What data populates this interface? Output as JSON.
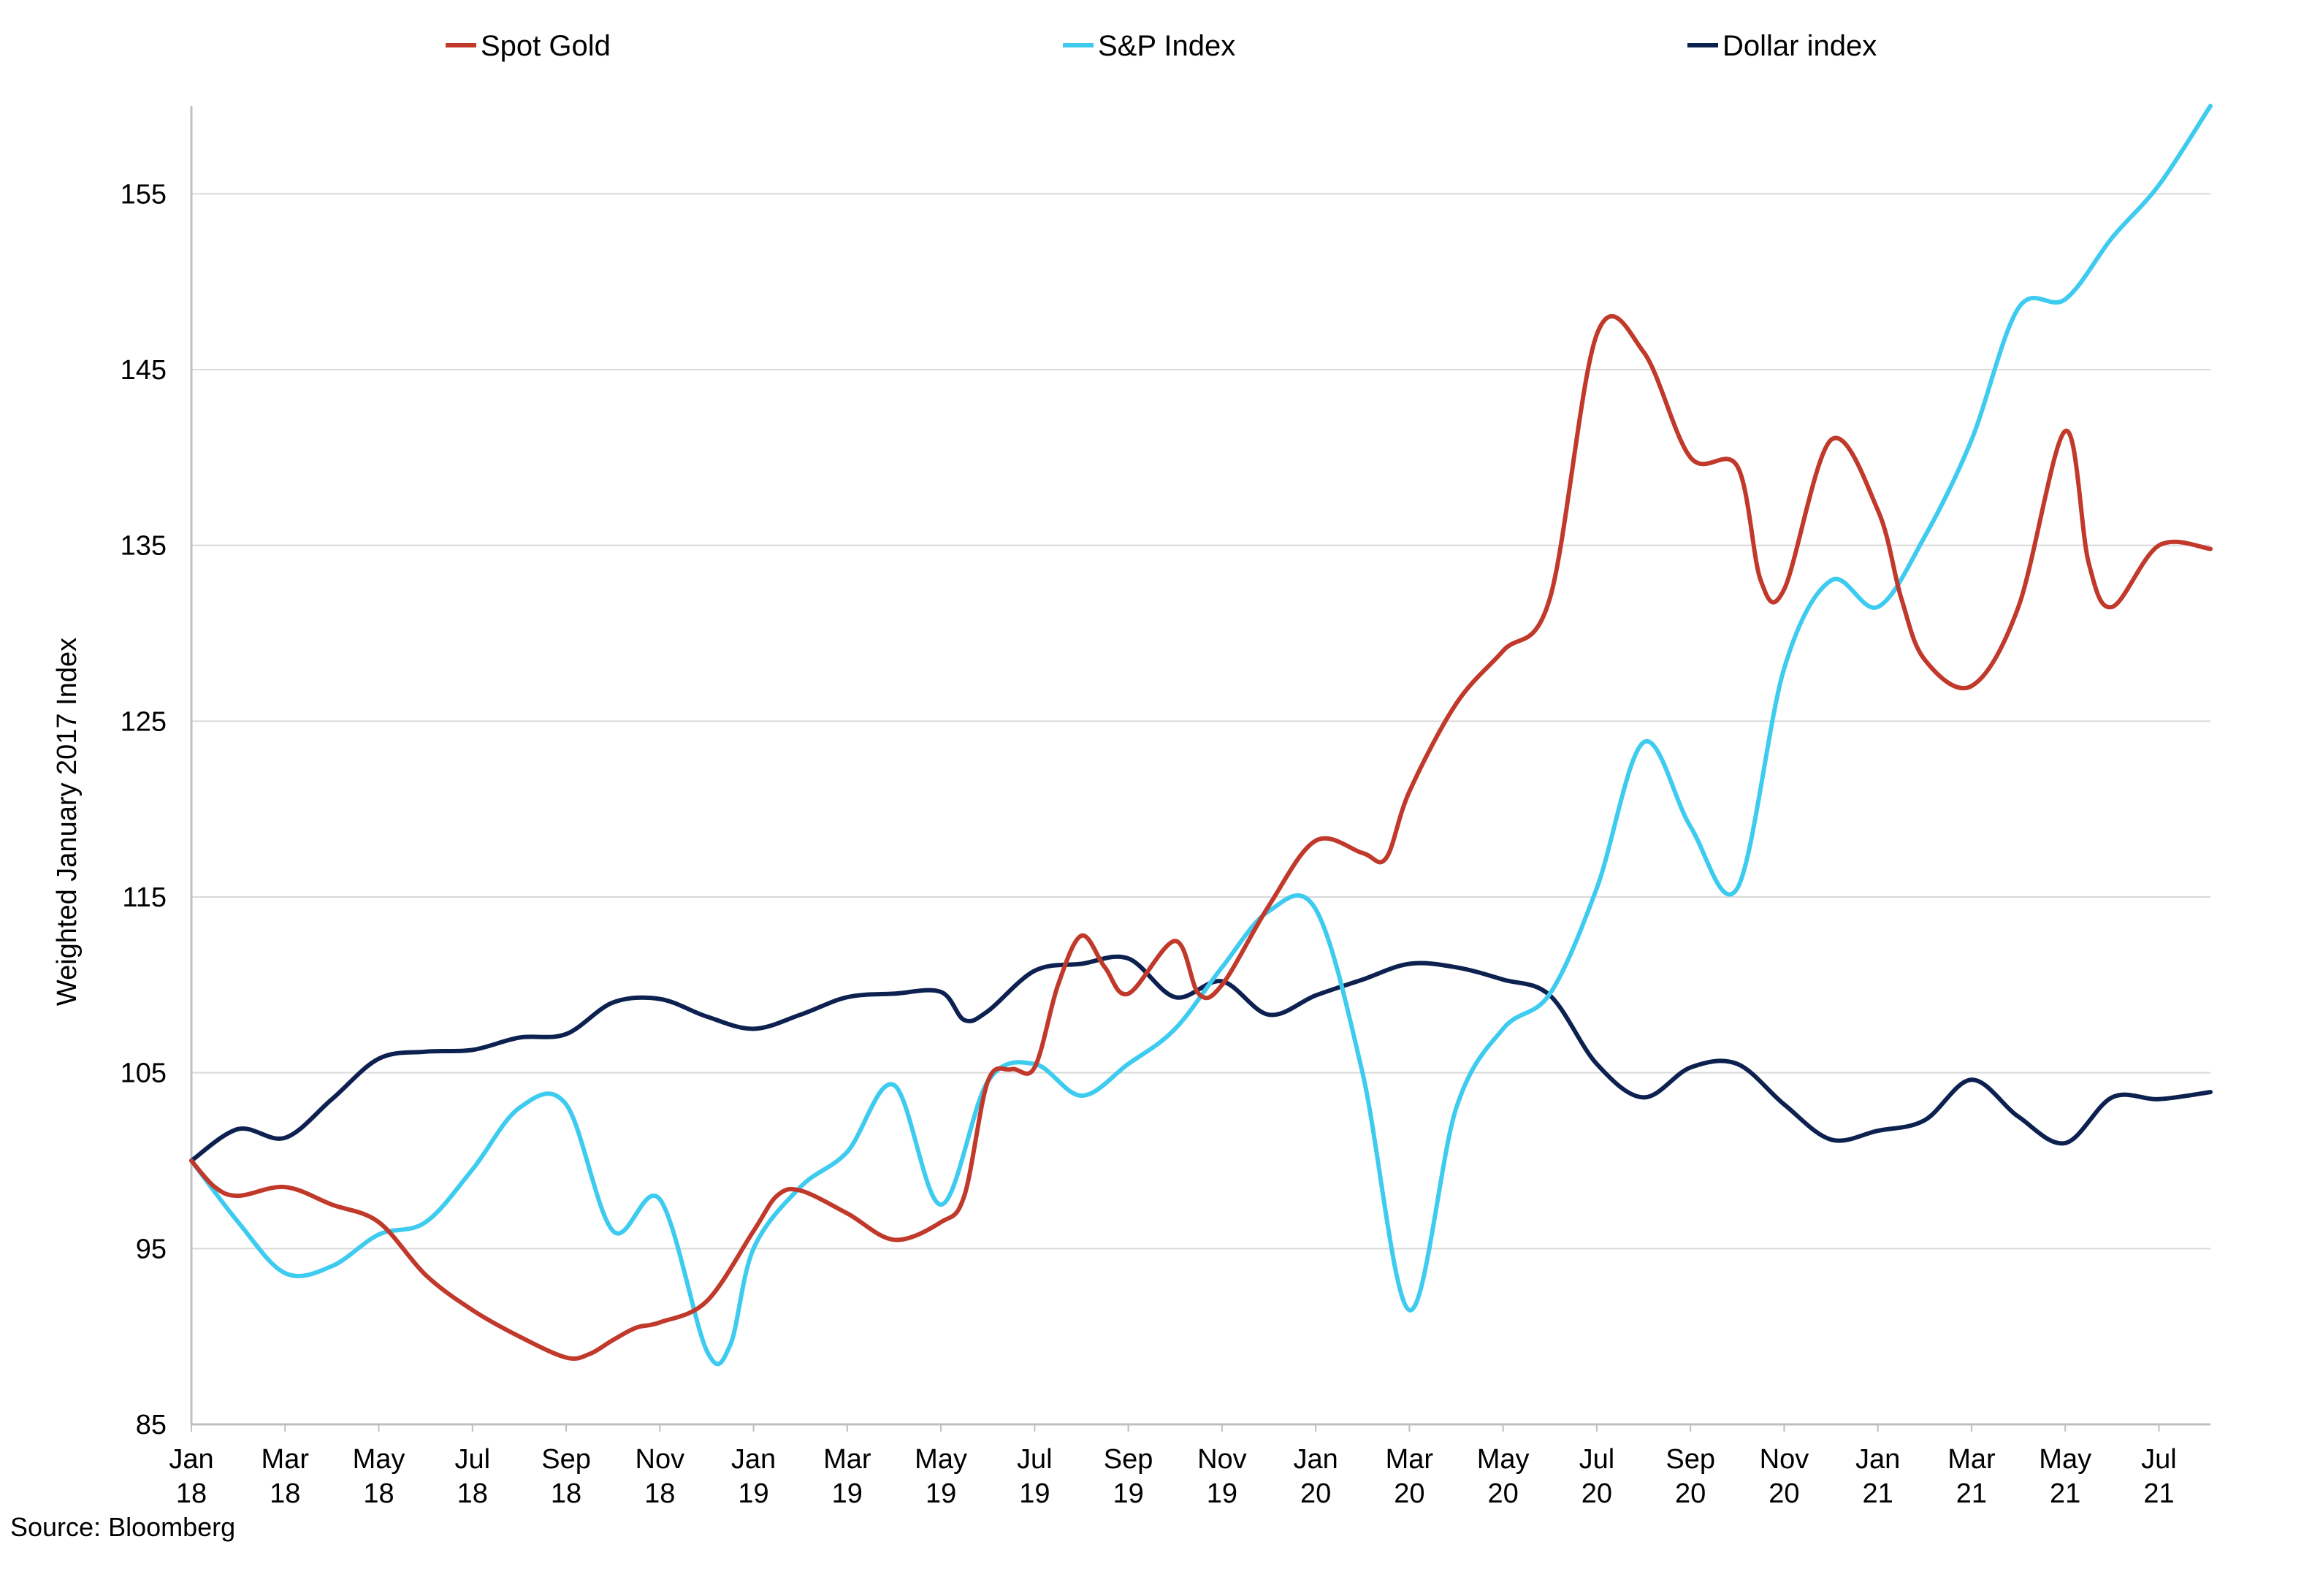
{
  "source": "Source: Bloomberg",
  "chart_data": {
    "type": "line",
    "ylabel": "Weighted January 2017 Index",
    "xlabel": "",
    "ylim": [
      85,
      160
    ],
    "yticks": [
      85,
      95,
      105,
      115,
      125,
      135,
      145,
      155
    ],
    "grid": "horizontal",
    "legend_position": "top",
    "x_tick_labels": [
      [
        "Jan",
        "18"
      ],
      [
        "Mar",
        "18"
      ],
      [
        "May",
        "18"
      ],
      [
        "Jul",
        "18"
      ],
      [
        "Sep",
        "18"
      ],
      [
        "Nov",
        "18"
      ],
      [
        "Jan",
        "19"
      ],
      [
        "Mar",
        "19"
      ],
      [
        "May",
        "19"
      ],
      [
        "Jul",
        "19"
      ],
      [
        "Sep",
        "19"
      ],
      [
        "Nov",
        "19"
      ],
      [
        "Jan",
        "20"
      ],
      [
        "Mar",
        "20"
      ],
      [
        "May",
        "20"
      ],
      [
        "Jul",
        "20"
      ],
      [
        "Sep",
        "20"
      ],
      [
        "Nov",
        "20"
      ],
      [
        "Jan",
        "21"
      ],
      [
        "Mar",
        "21"
      ],
      [
        "May",
        "21"
      ],
      [
        "Jul",
        "21"
      ]
    ],
    "x_tick_months": [
      0,
      2,
      4,
      6,
      8,
      10,
      12,
      14,
      16,
      18,
      20,
      22,
      24,
      26,
      28,
      30,
      32,
      34,
      36,
      38,
      40,
      42
    ],
    "xlim_months": [
      0,
      43.1
    ],
    "x_unit": "months since Jan 18",
    "series": [
      {
        "name": "Spot Gold",
        "color": "#C0392B",
        "points": [
          [
            0,
            100
          ],
          [
            0.5,
            98.5
          ],
          [
            1,
            98
          ],
          [
            2,
            98.5
          ],
          [
            3,
            97.5
          ],
          [
            4,
            96.5
          ],
          [
            5,
            93.5
          ],
          [
            6,
            91.5
          ],
          [
            7,
            90
          ],
          [
            8,
            88.8
          ],
          [
            8.5,
            89
          ],
          [
            9,
            89.8
          ],
          [
            9.5,
            90.5
          ],
          [
            10,
            90.8
          ],
          [
            11,
            92
          ],
          [
            12,
            96
          ],
          [
            12.5,
            98
          ],
          [
            13,
            98.3
          ],
          [
            14,
            97
          ],
          [
            15,
            95.5
          ],
          [
            16,
            96.5
          ],
          [
            16.5,
            98
          ],
          [
            17,
            104.5
          ],
          [
            17.5,
            105.2
          ],
          [
            18,
            105.3
          ],
          [
            18.5,
            110
          ],
          [
            19,
            112.8
          ],
          [
            19.5,
            111
          ],
          [
            20,
            109.5
          ],
          [
            21,
            112.5
          ],
          [
            21.5,
            109.5
          ],
          [
            22,
            110
          ],
          [
            23,
            114.5
          ],
          [
            24,
            118.2
          ],
          [
            25,
            117.5
          ],
          [
            25.5,
            117.2
          ],
          [
            26,
            121
          ],
          [
            27,
            126
          ],
          [
            28,
            129
          ],
          [
            29,
            132
          ],
          [
            30,
            147
          ],
          [
            31,
            146
          ],
          [
            32,
            140
          ],
          [
            33,
            139.5
          ],
          [
            33.5,
            133
          ],
          [
            34,
            132.5
          ],
          [
            35,
            141
          ],
          [
            36,
            137
          ],
          [
            36.5,
            132
          ],
          [
            37,
            128.5
          ],
          [
            38,
            127
          ],
          [
            39,
            131.5
          ],
          [
            40,
            141.5
          ],
          [
            40.5,
            134
          ],
          [
            41,
            131.5
          ],
          [
            42,
            135
          ],
          [
            43.1,
            134.8
          ]
        ]
      },
      {
        "name": "S&P Index",
        "color": "#3DCBF0",
        "points": [
          [
            0,
            100
          ],
          [
            1,
            96.5
          ],
          [
            2,
            93.6
          ],
          [
            3,
            94
          ],
          [
            4,
            95.8
          ],
          [
            5,
            96.5
          ],
          [
            6,
            99.5
          ],
          [
            7,
            103
          ],
          [
            8,
            103.2
          ],
          [
            9,
            96
          ],
          [
            10,
            97.8
          ],
          [
            11,
            89.2
          ],
          [
            11.5,
            89.5
          ],
          [
            12,
            95
          ],
          [
            13,
            98.5
          ],
          [
            14,
            100.5
          ],
          [
            15,
            104.3
          ],
          [
            16,
            97.5
          ],
          [
            17,
            104.5
          ],
          [
            18,
            105.5
          ],
          [
            19,
            103.7
          ],
          [
            20,
            105.5
          ],
          [
            21,
            107.5
          ],
          [
            22,
            111
          ],
          [
            23,
            114.2
          ],
          [
            24,
            114.3
          ],
          [
            25,
            105
          ],
          [
            26,
            91.5
          ],
          [
            27,
            103
          ],
          [
            28,
            107.5
          ],
          [
            29,
            109.5
          ],
          [
            30,
            115.5
          ],
          [
            31,
            123.8
          ],
          [
            32,
            119
          ],
          [
            33,
            115.5
          ],
          [
            34,
            128
          ],
          [
            35,
            133
          ],
          [
            36,
            131.5
          ],
          [
            37,
            135.5
          ],
          [
            38,
            141
          ],
          [
            39,
            148.5
          ],
          [
            40,
            149
          ],
          [
            41,
            152.5
          ],
          [
            42,
            155.5
          ],
          [
            43.1,
            160
          ]
        ]
      },
      {
        "name": "Dollar index",
        "color": "#0D2150",
        "points": [
          [
            0,
            100
          ],
          [
            1,
            101.8
          ],
          [
            2,
            101.3
          ],
          [
            3,
            103.5
          ],
          [
            4,
            105.8
          ],
          [
            5,
            106.2
          ],
          [
            6,
            106.3
          ],
          [
            7,
            107
          ],
          [
            8,
            107.2
          ],
          [
            9,
            109
          ],
          [
            10,
            109.2
          ],
          [
            11,
            108.2
          ],
          [
            12,
            107.5
          ],
          [
            13,
            108.3
          ],
          [
            14,
            109.3
          ],
          [
            15,
            109.5
          ],
          [
            16,
            109.6
          ],
          [
            16.5,
            108
          ],
          [
            17,
            108.5
          ],
          [
            18,
            110.8
          ],
          [
            19,
            111.2
          ],
          [
            20,
            111.5
          ],
          [
            21,
            109.3
          ],
          [
            22,
            110.2
          ],
          [
            23,
            108.3
          ],
          [
            24,
            109.4
          ],
          [
            25,
            110.3
          ],
          [
            26,
            111.2
          ],
          [
            27,
            111
          ],
          [
            28,
            110.3
          ],
          [
            29,
            109.4
          ],
          [
            30,
            105.5
          ],
          [
            31,
            103.6
          ],
          [
            32,
            105.3
          ],
          [
            33,
            105.5
          ],
          [
            34,
            103.2
          ],
          [
            35,
            101.2
          ],
          [
            36,
            101.7
          ],
          [
            37,
            102.3
          ],
          [
            38,
            104.6
          ],
          [
            39,
            102.5
          ],
          [
            40,
            101
          ],
          [
            41,
            103.6
          ],
          [
            42,
            103.5
          ],
          [
            43.1,
            103.9
          ]
        ]
      }
    ]
  }
}
